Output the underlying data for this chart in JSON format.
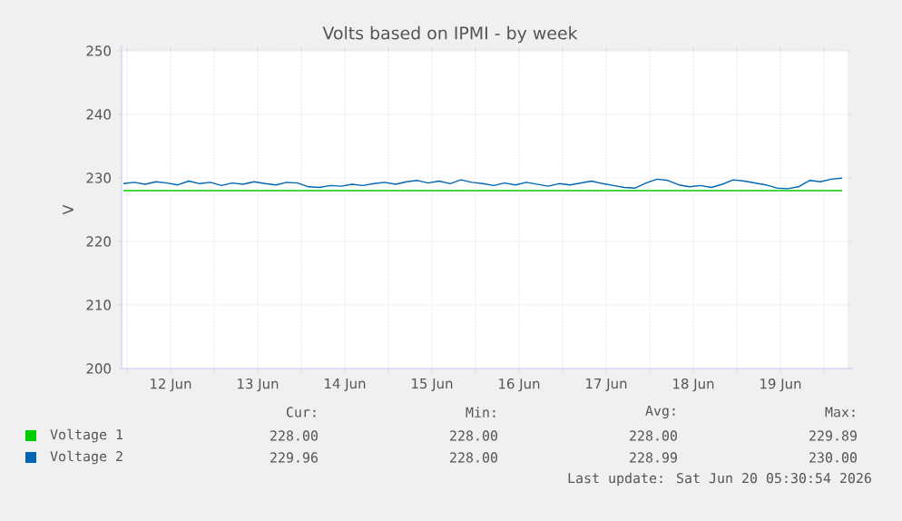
{
  "chart_data": {
    "type": "line",
    "title": "Volts based on IPMI - by week",
    "ylabel": "V",
    "xlim": [
      "2026-06-11T22:30",
      "2026-06-20T06:30"
    ],
    "xticks": [
      {
        "value": "2026-06-12T00:00",
        "label": null
      },
      {
        "value": "2026-06-12T12:00",
        "label": "12 Jun"
      },
      {
        "value": "2026-06-13T00:00",
        "label": null
      },
      {
        "value": "2026-06-13T12:00",
        "label": "13 Jun"
      },
      {
        "value": "2026-06-14T00:00",
        "label": null
      },
      {
        "value": "2026-06-14T12:00",
        "label": "14 Jun"
      },
      {
        "value": "2026-06-15T00:00",
        "label": null
      },
      {
        "value": "2026-06-15T12:00",
        "label": "15 Jun"
      },
      {
        "value": "2026-06-16T00:00",
        "label": null
      },
      {
        "value": "2026-06-16T12:00",
        "label": "16 Jun"
      },
      {
        "value": "2026-06-17T00:00",
        "label": null
      },
      {
        "value": "2026-06-17T12:00",
        "label": "17 Jun"
      },
      {
        "value": "2026-06-18T00:00",
        "label": null
      },
      {
        "value": "2026-06-18T12:00",
        "label": "18 Jun"
      },
      {
        "value": "2026-06-19T00:00",
        "label": null
      },
      {
        "value": "2026-06-19T12:00",
        "label": "19 Jun"
      },
      {
        "value": "2026-06-20T00:00",
        "label": null
      }
    ],
    "ylim": [
      200,
      250
    ],
    "yticks": [
      200,
      210,
      220,
      230,
      240,
      250
    ],
    "grid": true,
    "legend": "bottom left",
    "series": [
      {
        "name": "Voltage 1",
        "color": "#00cc00",
        "x": [
          "2026-06-11T23:00",
          "2026-06-20T05:00"
        ],
        "values": [
          228,
          228
        ]
      },
      {
        "name": "Voltage 2",
        "color": "#0066b3",
        "x": [
          "2026-06-11T23:00",
          "2026-06-12T02:00",
          "2026-06-12T05:00",
          "2026-06-12T08:00",
          "2026-06-12T11:00",
          "2026-06-12T14:00",
          "2026-06-12T17:00",
          "2026-06-12T20:00",
          "2026-06-12T23:00",
          "2026-06-13T02:00",
          "2026-06-13T05:00",
          "2026-06-13T08:00",
          "2026-06-13T11:00",
          "2026-06-13T14:00",
          "2026-06-13T17:00",
          "2026-06-13T20:00",
          "2026-06-13T23:00",
          "2026-06-14T02:00",
          "2026-06-14T05:00",
          "2026-06-14T08:00",
          "2026-06-14T11:00",
          "2026-06-14T14:00",
          "2026-06-14T17:00",
          "2026-06-14T20:00",
          "2026-06-14T23:00",
          "2026-06-15T02:00",
          "2026-06-15T05:00",
          "2026-06-15T08:00",
          "2026-06-15T11:00",
          "2026-06-15T14:00",
          "2026-06-15T17:00",
          "2026-06-15T20:00",
          "2026-06-15T23:00",
          "2026-06-16T02:00",
          "2026-06-16T05:00",
          "2026-06-16T08:00",
          "2026-06-16T11:00",
          "2026-06-16T14:00",
          "2026-06-16T17:00",
          "2026-06-16T20:00",
          "2026-06-16T23:00",
          "2026-06-17T02:00",
          "2026-06-17T05:00",
          "2026-06-17T08:00",
          "2026-06-17T11:00",
          "2026-06-17T14:00",
          "2026-06-17T17:00",
          "2026-06-17T20:00",
          "2026-06-17T23:00",
          "2026-06-18T02:00",
          "2026-06-18T05:00",
          "2026-06-18T08:00",
          "2026-06-18T11:00",
          "2026-06-18T14:00",
          "2026-06-18T17:00",
          "2026-06-18T20:00",
          "2026-06-18T23:00",
          "2026-06-19T02:00",
          "2026-06-19T05:00",
          "2026-06-19T08:00",
          "2026-06-19T11:00",
          "2026-06-19T14:00",
          "2026-06-19T17:00",
          "2026-06-19T20:00",
          "2026-06-19T23:00",
          "2026-06-20T02:00",
          "2026-06-20T05:00"
        ],
        "values": [
          229.1,
          229.3,
          229.0,
          229.4,
          229.2,
          228.9,
          229.5,
          229.1,
          229.3,
          228.8,
          229.2,
          229.0,
          229.4,
          229.1,
          228.9,
          229.3,
          229.2,
          228.6,
          228.5,
          228.8,
          228.7,
          229.0,
          228.8,
          229.1,
          229.3,
          229.0,
          229.4,
          229.6,
          229.2,
          229.5,
          229.1,
          229.7,
          229.3,
          229.1,
          228.8,
          229.2,
          228.9,
          229.3,
          229.0,
          228.7,
          229.1,
          228.9,
          229.2,
          229.5,
          229.1,
          228.8,
          228.5,
          228.4,
          229.2,
          229.8,
          229.6,
          228.9,
          228.6,
          228.8,
          228.5,
          229.0,
          229.7,
          229.5,
          229.2,
          228.9,
          228.4,
          228.3,
          228.6,
          229.6,
          229.4,
          229.8,
          229.96
        ]
      }
    ],
    "annotations": [
      "Cur:",
      "Min:",
      "Avg:",
      "Max:",
      "228.00",
      "228.00",
      "228.00",
      "229.89",
      "229.96",
      "228.00",
      "228.99",
      "230.00",
      "Last update: Sat Jun 20 05:30:54 2026"
    ]
  }
}
